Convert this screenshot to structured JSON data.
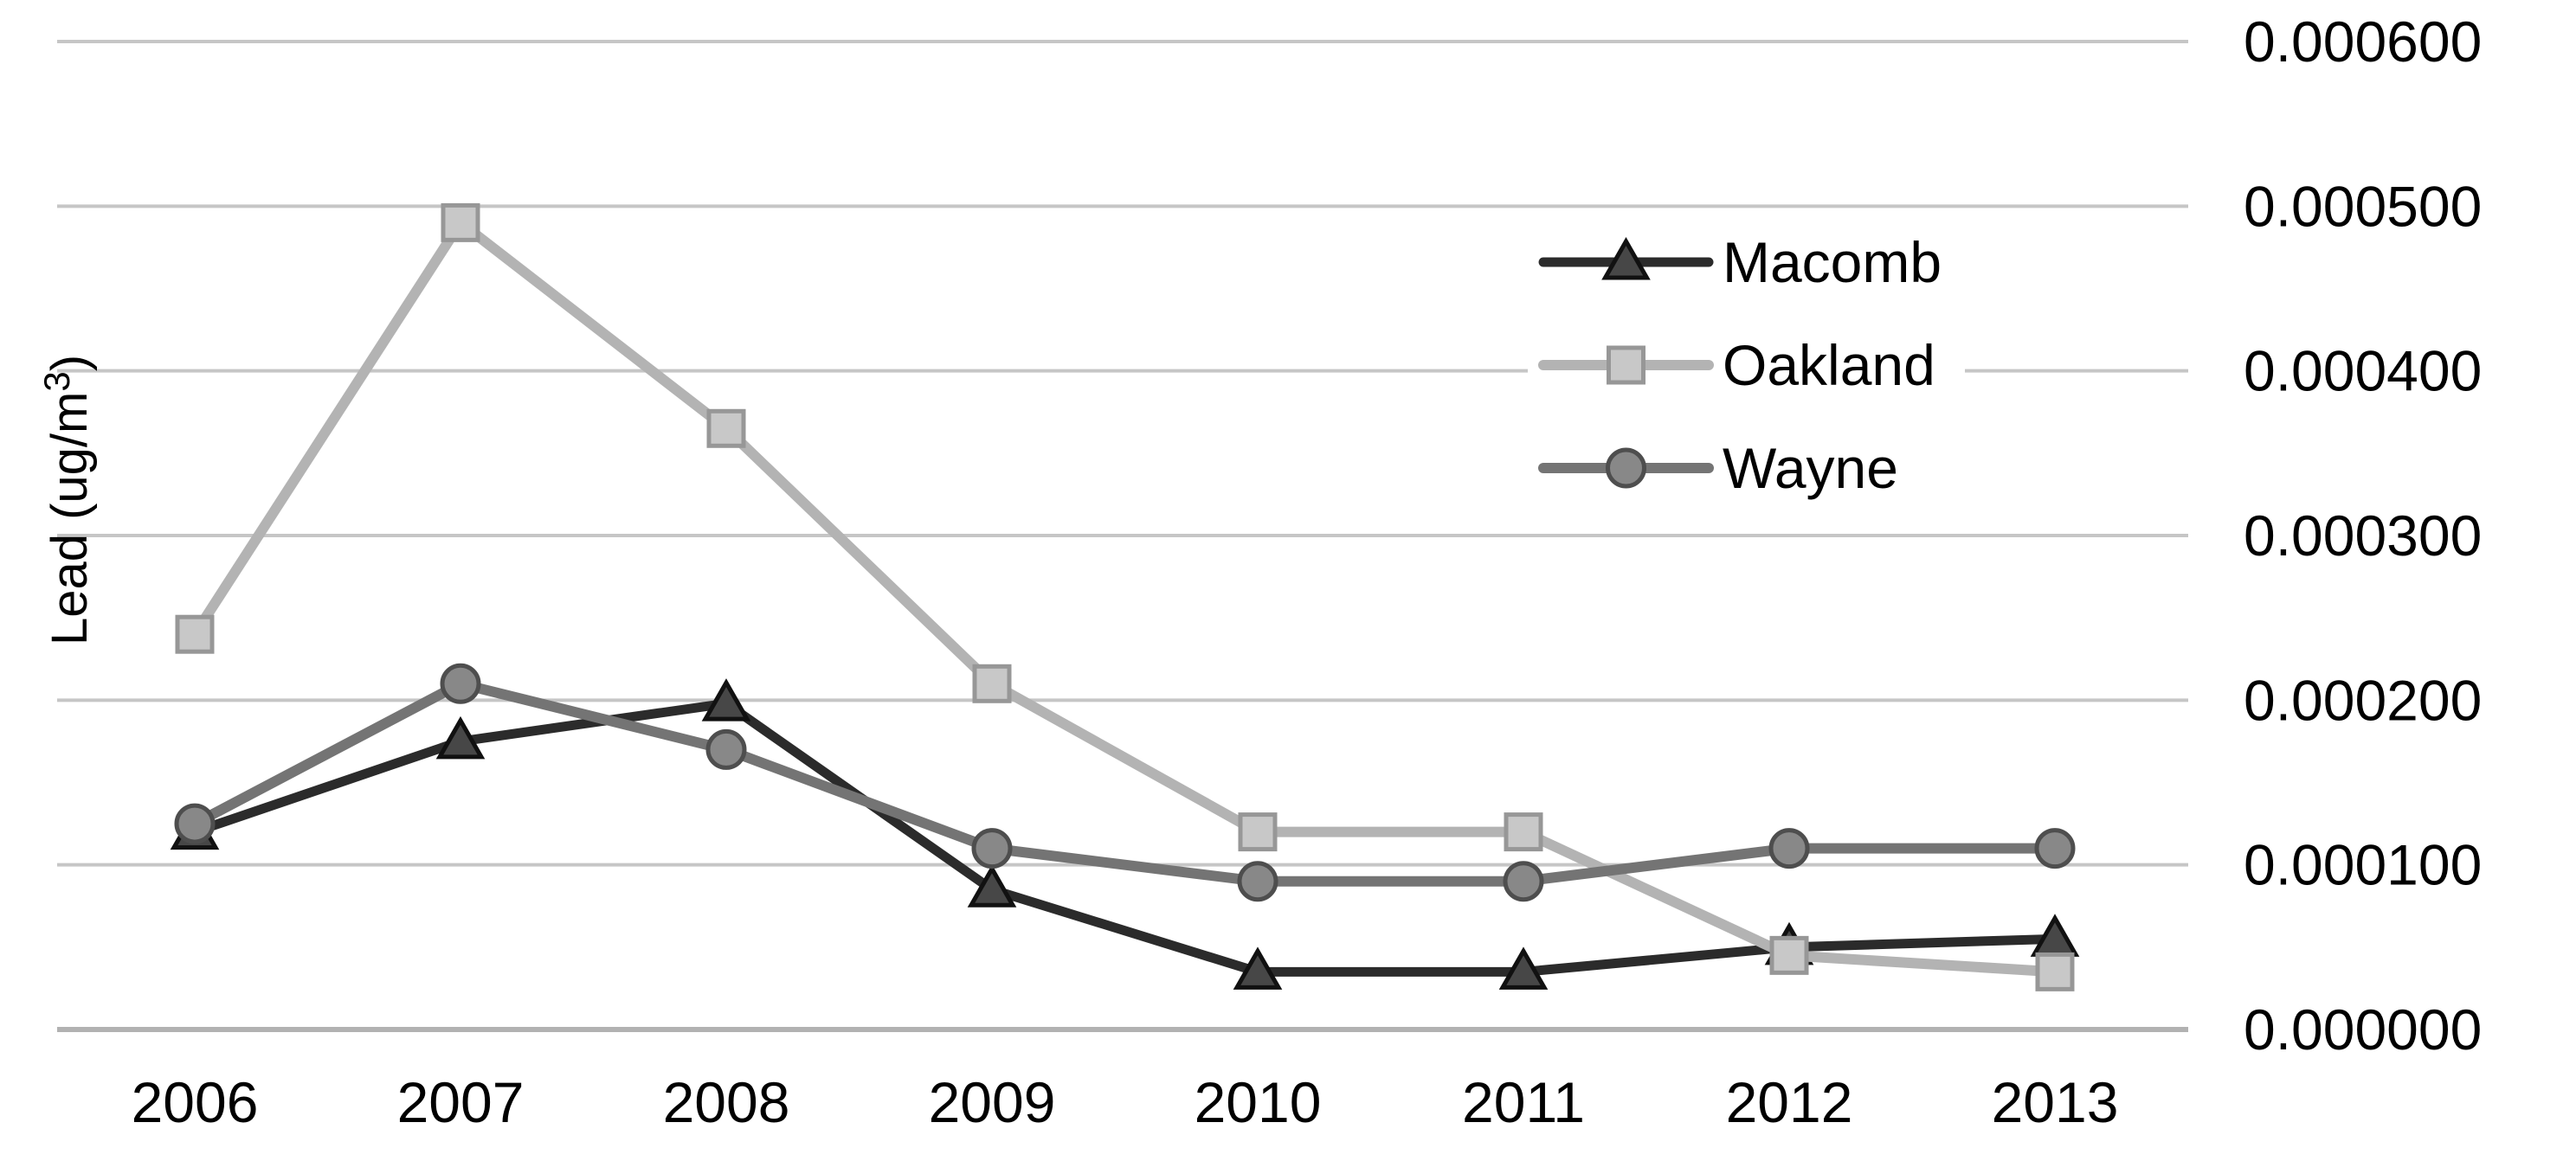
{
  "chart_data": {
    "type": "line",
    "title": "",
    "xlabel": "",
    "ylabel": "Lead (ug/m³)",
    "categories": [
      "2006",
      "2007",
      "2008",
      "2009",
      "2010",
      "2011",
      "2012",
      "2013"
    ],
    "series": [
      {
        "name": "Macomb",
        "marker": "triangle",
        "line_color": "#2b2b2b",
        "marker_fill": "#474747",
        "marker_stroke": "#111111",
        "values": [
          0.00012,
          0.000175,
          0.000198,
          8.5e-05,
          3.5e-05,
          3.5e-05,
          5e-05,
          5.5e-05
        ]
      },
      {
        "name": "Oakland",
        "marker": "square",
        "line_color": "#b3b3b3",
        "marker_fill": "#c8c8c8",
        "marker_stroke": "#979797",
        "values": [
          0.00024,
          0.00049,
          0.000365,
          0.00021,
          0.00012,
          0.00012,
          4.5e-05,
          3.5e-05
        ]
      },
      {
        "name": "Wayne",
        "marker": "circle",
        "line_color": "#747474",
        "marker_fill": "#888888",
        "marker_stroke": "#4e4e4e",
        "values": [
          0.000125,
          0.00021,
          0.00017,
          0.00011,
          9e-05,
          9e-05,
          0.00011,
          0.00011
        ]
      }
    ],
    "y_ticks": [
      "0.000600",
      "0.000500",
      "0.000400",
      "0.000300",
      "0.000200",
      "0.000100",
      "0.000000"
    ],
    "y_tick_values": [
      0.0006,
      0.0005,
      0.0004,
      0.0003,
      0.0002,
      0.0001,
      0.0
    ],
    "ylim": [
      0.0,
      0.0006
    ],
    "grid": true,
    "legend_position": "upper-right-inside",
    "legend_labels": [
      "Macomb",
      "Oakland",
      "Wayne"
    ],
    "background_color": "#ffffff",
    "gridline_color": "#c6c6c6",
    "axis_line_color": "#b2b2b2",
    "text_color": "#000000"
  }
}
